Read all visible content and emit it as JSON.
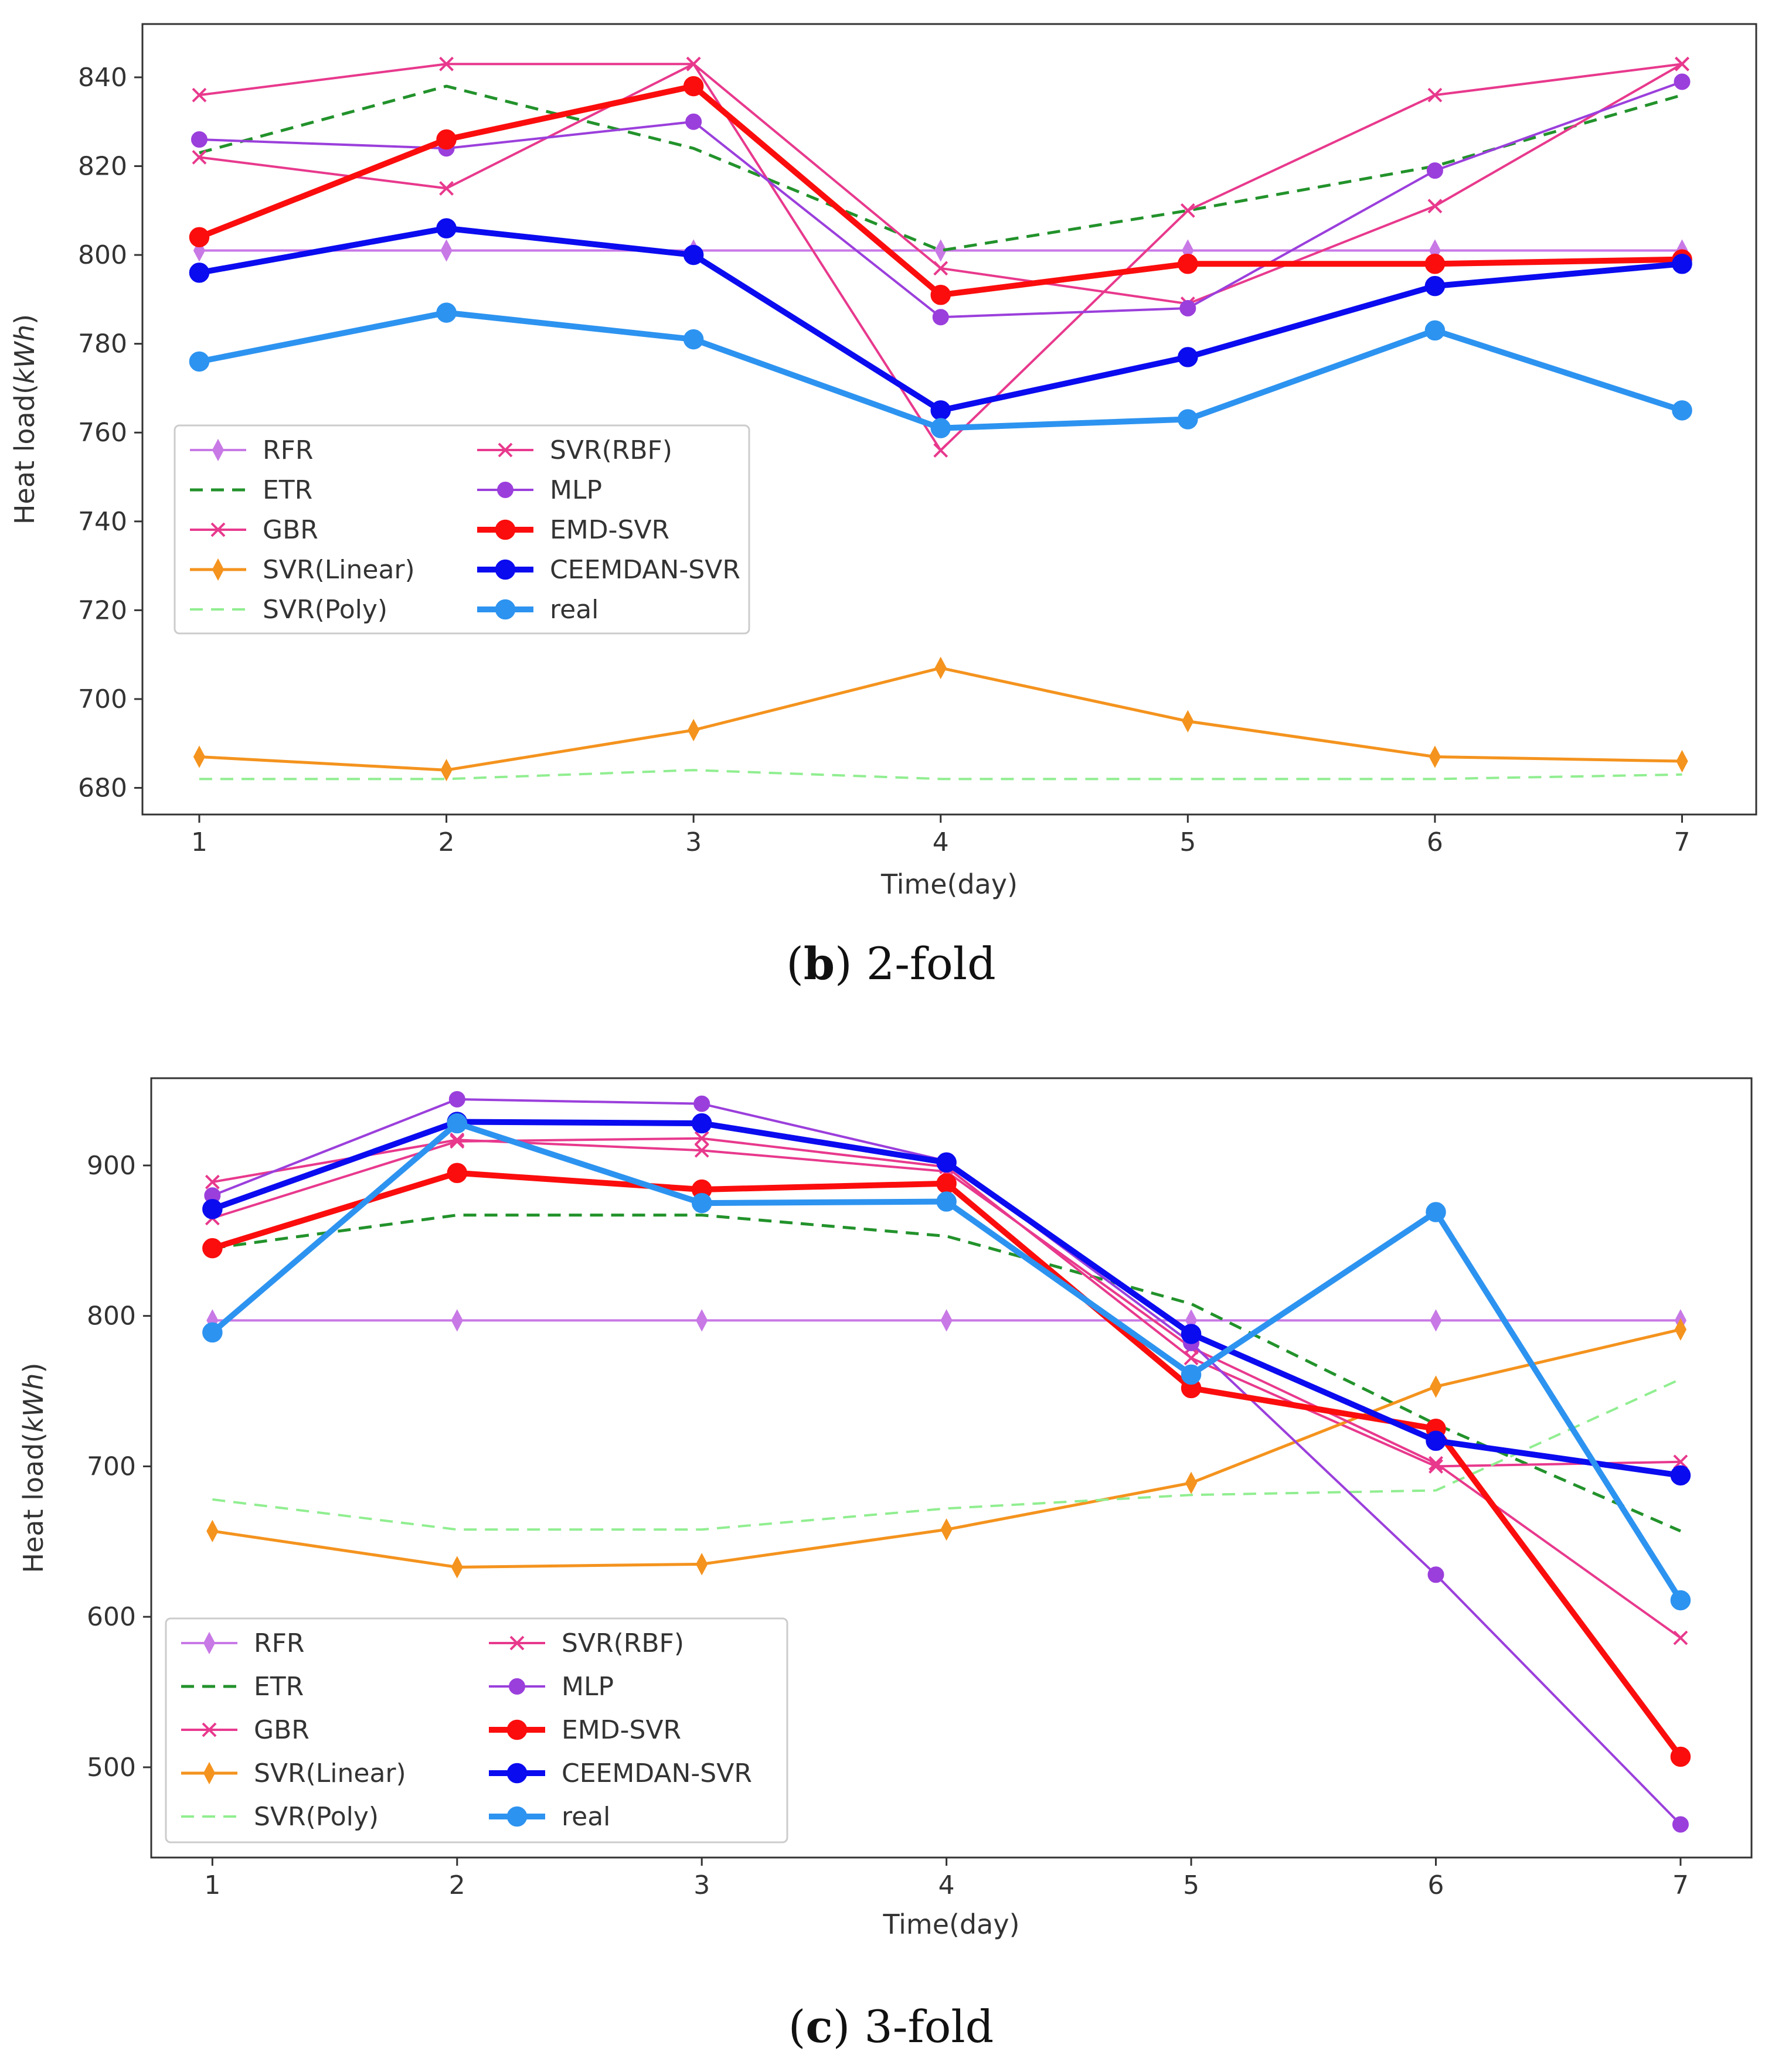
{
  "captions": [
    {
      "letter": "b",
      "text": ") 2-fold",
      "open": "("
    },
    {
      "letter": "c",
      "text": ") 3-fold",
      "open": "("
    }
  ],
  "chart_data": [
    {
      "type": "line",
      "title": "",
      "xlabel": "Time(day)",
      "ylabel_pre": "Heat load(",
      "ylabel_it": "kWh",
      "ylabel_post": ")",
      "x": [
        1,
        2,
        3,
        4,
        5,
        6,
        7
      ],
      "xlim": [
        0.77,
        7.3
      ],
      "ylim": [
        674,
        852
      ],
      "yticks": [
        680,
        700,
        720,
        740,
        760,
        780,
        800,
        820,
        840
      ],
      "legend_position": "center-left",
      "series": [
        {
          "name": "RFR",
          "color": "#c879e6",
          "marker": "thin_diamond",
          "dash": "",
          "width": 4,
          "values": [
            801,
            801,
            801,
            801,
            801,
            801,
            801
          ]
        },
        {
          "name": "ETR",
          "color": "#22922b",
          "marker": "",
          "dash": "22,14",
          "width": 5,
          "values": [
            823,
            838,
            824,
            801,
            810,
            820,
            836
          ]
        },
        {
          "name": "GBR",
          "color": "#e8398d",
          "marker": "x",
          "dash": "",
          "width": 4,
          "values": [
            822,
            815,
            843,
            797,
            789,
            811,
            843
          ]
        },
        {
          "name": "SVR(Linear)",
          "color": "#f4931e",
          "marker": "thin_diamond",
          "dash": "",
          "width": 5,
          "values": [
            687,
            684,
            693,
            707,
            695,
            687,
            686
          ]
        },
        {
          "name": "SVR(Poly)",
          "color": "#90ee90",
          "marker": "",
          "dash": "22,14",
          "width": 4,
          "values": [
            682,
            682,
            684,
            682,
            682,
            682,
            683
          ]
        },
        {
          "name": "SVR(RBF)",
          "color": "#e8398d",
          "marker": "x",
          "dash": "",
          "width": 4,
          "values": [
            836,
            843,
            843,
            756,
            810,
            836,
            843
          ]
        },
        {
          "name": "MLP",
          "color": "#9b3fdc",
          "marker": "o",
          "dash": "",
          "width": 4,
          "values": [
            826,
            824,
            830,
            786,
            788,
            819,
            839
          ]
        },
        {
          "name": "EMD-SVR",
          "color": "#fb0d0d",
          "marker": "o",
          "dash": "",
          "width": 10,
          "values": [
            804,
            826,
            838,
            791,
            798,
            798,
            799
          ]
        },
        {
          "name": "CEEMDAN-SVR",
          "color": "#0b0bf0",
          "marker": "o",
          "dash": "",
          "width": 10,
          "values": [
            796,
            806,
            800,
            765,
            777,
            793,
            798
          ]
        },
        {
          "name": "real",
          "color": "#2d93f0",
          "marker": "o",
          "dash": "",
          "width": 10,
          "values": [
            776,
            787,
            781,
            761,
            763,
            783,
            765
          ]
        }
      ]
    },
    {
      "type": "line",
      "title": "",
      "xlabel": "Time(day)",
      "ylabel_pre": "Heat load(",
      "ylabel_it": "kWh",
      "ylabel_post": ")",
      "x": [
        1,
        2,
        3,
        4,
        5,
        6,
        7
      ],
      "xlim": [
        0.75,
        7.29
      ],
      "ylim": [
        440,
        958
      ],
      "yticks": [
        500,
        600,
        700,
        800,
        900
      ],
      "legend_position": "bottom-left",
      "series": [
        {
          "name": "RFR",
          "color": "#c879e6",
          "marker": "thin_diamond",
          "dash": "",
          "width": 4,
          "values": [
            797,
            797,
            797,
            797,
            797,
            797,
            797
          ]
        },
        {
          "name": "ETR",
          "color": "#22922b",
          "marker": "",
          "dash": "22,14",
          "width": 5,
          "values": [
            845,
            867,
            867,
            853,
            808,
            728,
            657
          ]
        },
        {
          "name": "GBR",
          "color": "#e8398d",
          "marker": "x",
          "dash": "",
          "width": 4,
          "values": [
            865,
            916,
            918,
            899,
            772,
            700,
            703
          ]
        },
        {
          "name": "SVR(Linear)",
          "color": "#f4931e",
          "marker": "thin_diamond",
          "dash": "",
          "width": 5,
          "values": [
            657,
            633,
            635,
            658,
            689,
            753,
            791
          ]
        },
        {
          "name": "SVR(Poly)",
          "color": "#90ee90",
          "marker": "",
          "dash": "22,14",
          "width": 4,
          "values": [
            678,
            658,
            658,
            672,
            681,
            684,
            758
          ]
        },
        {
          "name": "SVR(RBF)",
          "color": "#e8398d",
          "marker": "x",
          "dash": "",
          "width": 4,
          "values": [
            889,
            917,
            910,
            896,
            779,
            702,
            586
          ]
        },
        {
          "name": "MLP",
          "color": "#9b3fdc",
          "marker": "o",
          "dash": "",
          "width": 4,
          "values": [
            880,
            944,
            941,
            903,
            782,
            628,
            462
          ]
        },
        {
          "name": "EMD-SVR",
          "color": "#fb0d0d",
          "marker": "o",
          "dash": "",
          "width": 10,
          "values": [
            845,
            895,
            884,
            888,
            752,
            725,
            507
          ]
        },
        {
          "name": "CEEMDAN-SVR",
          "color": "#0b0bf0",
          "marker": "o",
          "dash": "",
          "width": 10,
          "values": [
            871,
            929,
            928,
            902,
            788,
            717,
            694
          ]
        },
        {
          "name": "real",
          "color": "#2d93f0",
          "marker": "o",
          "dash": "",
          "width": 10,
          "values": [
            789,
            928,
            875,
            876,
            761,
            869,
            611
          ]
        }
      ]
    }
  ]
}
